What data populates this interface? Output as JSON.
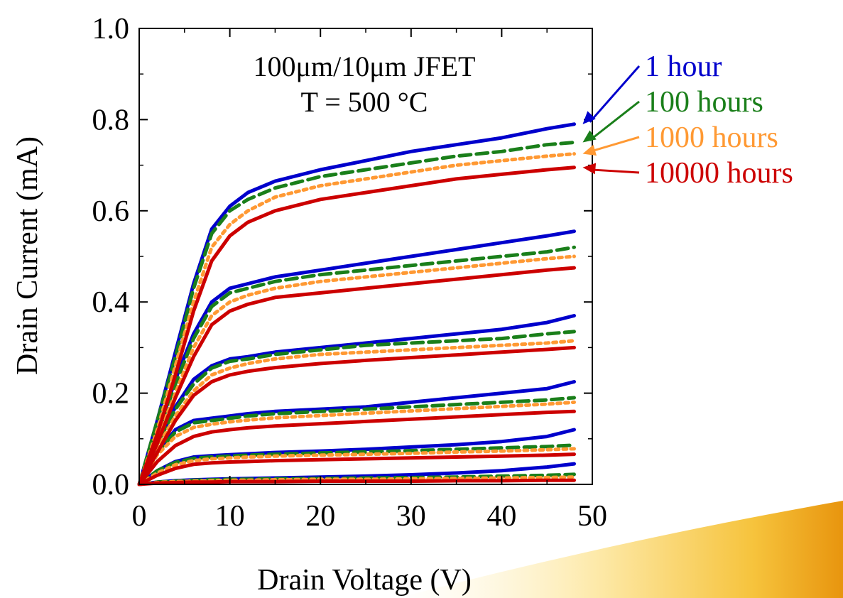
{
  "chart_data": {
    "type": "line",
    "title": "100μm/10μm JFET",
    "subtitle": "T = 500 °C",
    "xlabel": "Drain Voltage (V)",
    "ylabel": "Drain Current (mA)",
    "xlim": [
      0,
      50
    ],
    "ylim": [
      0,
      1.0
    ],
    "xticks": [
      "0",
      "10",
      "20",
      "30",
      "40",
      "50"
    ],
    "yticks": [
      "0.0",
      "0.2",
      "0.4",
      "0.6",
      "0.8",
      "1.0"
    ],
    "grid": false,
    "legend_position": "right, outside plot with arrows",
    "x": [
      0,
      2,
      4,
      6,
      8,
      10,
      12,
      15,
      20,
      25,
      30,
      35,
      40,
      45,
      48
    ],
    "series": [
      {
        "name": "1 hour",
        "color": "#0000cc",
        "style": "solid",
        "curves": [
          [
            0,
            0.14,
            0.29,
            0.44,
            0.56,
            0.61,
            0.64,
            0.665,
            0.69,
            0.71,
            0.73,
            0.745,
            0.76,
            0.78,
            0.79
          ],
          [
            0,
            0.11,
            0.23,
            0.33,
            0.4,
            0.43,
            0.44,
            0.455,
            0.47,
            0.485,
            0.5,
            0.515,
            0.53,
            0.545,
            0.555
          ],
          [
            0,
            0.09,
            0.17,
            0.23,
            0.26,
            0.275,
            0.28,
            0.29,
            0.3,
            0.31,
            0.32,
            0.33,
            0.34,
            0.355,
            0.37
          ],
          [
            0,
            0.07,
            0.12,
            0.14,
            0.145,
            0.15,
            0.155,
            0.16,
            0.165,
            0.17,
            0.18,
            0.19,
            0.2,
            0.21,
            0.225
          ],
          [
            0,
            0.03,
            0.05,
            0.06,
            0.063,
            0.065,
            0.067,
            0.07,
            0.073,
            0.077,
            0.082,
            0.087,
            0.094,
            0.105,
            0.12
          ],
          [
            0,
            0.005,
            0.008,
            0.01,
            0.011,
            0.012,
            0.013,
            0.014,
            0.016,
            0.018,
            0.021,
            0.025,
            0.03,
            0.038,
            0.045
          ]
        ]
      },
      {
        "name": "100 hours",
        "color": "#1a7f1a",
        "style": "dashed",
        "curves": [
          [
            0,
            0.14,
            0.28,
            0.43,
            0.55,
            0.6,
            0.625,
            0.65,
            0.675,
            0.69,
            0.705,
            0.72,
            0.73,
            0.745,
            0.75
          ],
          [
            0,
            0.11,
            0.22,
            0.32,
            0.39,
            0.42,
            0.43,
            0.445,
            0.46,
            0.47,
            0.48,
            0.49,
            0.5,
            0.51,
            0.52
          ],
          [
            0,
            0.09,
            0.165,
            0.22,
            0.255,
            0.27,
            0.275,
            0.285,
            0.295,
            0.305,
            0.31,
            0.315,
            0.32,
            0.33,
            0.335
          ],
          [
            0,
            0.07,
            0.115,
            0.135,
            0.14,
            0.145,
            0.15,
            0.155,
            0.16,
            0.165,
            0.17,
            0.175,
            0.18,
            0.185,
            0.19
          ],
          [
            0,
            0.03,
            0.048,
            0.057,
            0.06,
            0.062,
            0.064,
            0.066,
            0.069,
            0.071,
            0.074,
            0.077,
            0.08,
            0.083,
            0.086
          ],
          [
            0,
            0.005,
            0.007,
            0.009,
            0.01,
            0.011,
            0.011,
            0.012,
            0.013,
            0.014,
            0.015,
            0.016,
            0.018,
            0.02,
            0.022
          ]
        ]
      },
      {
        "name": "1000 hours",
        "color": "#ff9933",
        "style": "dotted",
        "curves": [
          [
            0,
            0.12,
            0.26,
            0.4,
            0.52,
            0.57,
            0.6,
            0.63,
            0.655,
            0.67,
            0.685,
            0.7,
            0.71,
            0.72,
            0.725
          ],
          [
            0,
            0.1,
            0.2,
            0.3,
            0.37,
            0.4,
            0.415,
            0.43,
            0.445,
            0.455,
            0.465,
            0.475,
            0.485,
            0.495,
            0.5
          ],
          [
            0,
            0.08,
            0.15,
            0.205,
            0.24,
            0.255,
            0.265,
            0.275,
            0.285,
            0.29,
            0.295,
            0.3,
            0.305,
            0.31,
            0.315
          ],
          [
            0,
            0.065,
            0.105,
            0.125,
            0.132,
            0.137,
            0.141,
            0.146,
            0.151,
            0.156,
            0.161,
            0.166,
            0.171,
            0.176,
            0.18
          ],
          [
            0,
            0.025,
            0.043,
            0.052,
            0.056,
            0.058,
            0.06,
            0.062,
            0.064,
            0.066,
            0.068,
            0.071,
            0.073,
            0.076,
            0.078
          ],
          [
            0,
            0.004,
            0.006,
            0.007,
            0.008,
            0.009,
            0.009,
            0.01,
            0.011,
            0.011,
            0.012,
            0.013,
            0.014,
            0.015,
            0.016
          ]
        ]
      },
      {
        "name": "10000 hours",
        "color": "#cc0000",
        "style": "solid",
        "curves": [
          [
            0,
            0.11,
            0.24,
            0.38,
            0.49,
            0.545,
            0.575,
            0.6,
            0.625,
            0.64,
            0.655,
            0.67,
            0.68,
            0.69,
            0.695
          ],
          [
            0,
            0.09,
            0.19,
            0.28,
            0.35,
            0.38,
            0.395,
            0.41,
            0.42,
            0.43,
            0.44,
            0.45,
            0.46,
            0.47,
            0.475
          ],
          [
            0,
            0.07,
            0.14,
            0.195,
            0.225,
            0.24,
            0.248,
            0.256,
            0.265,
            0.272,
            0.278,
            0.284,
            0.29,
            0.296,
            0.3
          ],
          [
            0,
            0.05,
            0.085,
            0.105,
            0.115,
            0.12,
            0.124,
            0.128,
            0.133,
            0.138,
            0.143,
            0.148,
            0.153,
            0.158,
            0.16
          ],
          [
            0,
            0.02,
            0.035,
            0.044,
            0.047,
            0.049,
            0.05,
            0.052,
            0.054,
            0.056,
            0.058,
            0.06,
            0.062,
            0.064,
            0.066
          ],
          [
            0,
            0.003,
            0.004,
            0.005,
            0.005,
            0.006,
            0.006,
            0.006,
            0.007,
            0.007,
            0.007,
            0.008,
            0.008,
            0.009,
            0.009
          ]
        ]
      }
    ]
  }
}
